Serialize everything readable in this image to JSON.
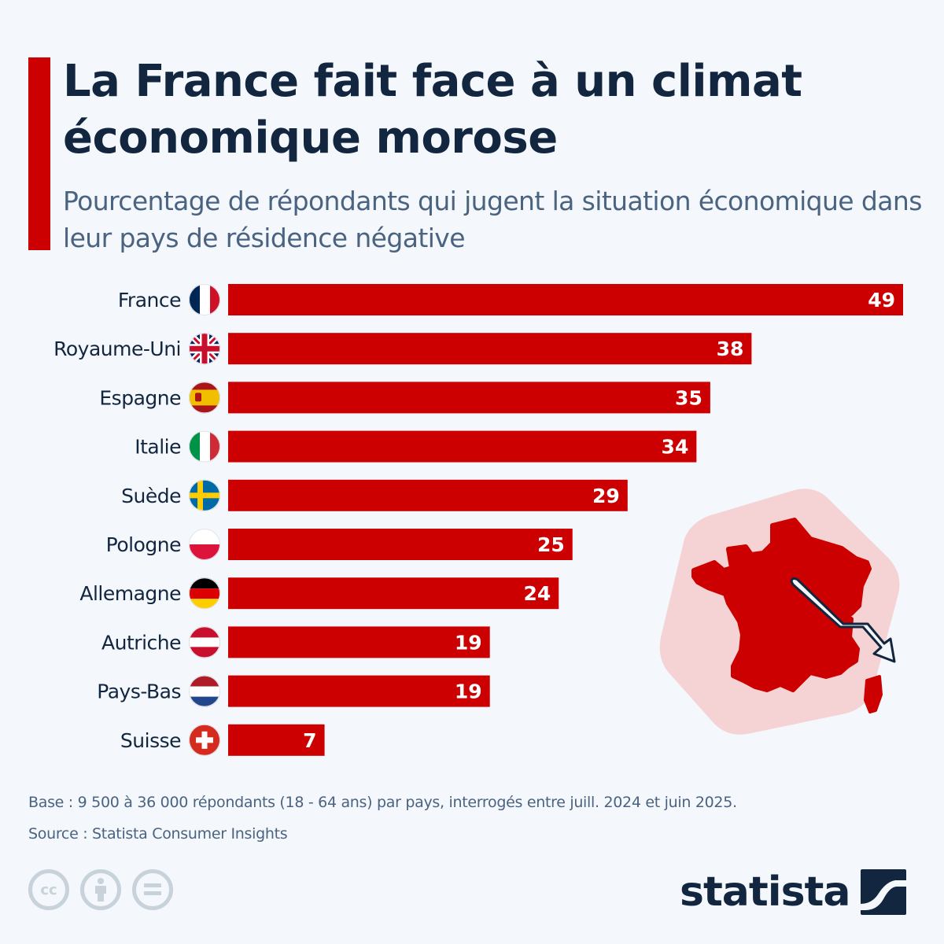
{
  "header": {
    "title": "La France fait face à un climat économique morose",
    "subtitle": "Pourcentage de répondants qui jugent la situation économique dans leur pays de résidence négative"
  },
  "colors": {
    "accent": "#cc0000",
    "title": "#12263f",
    "subtitle": "#4a6381",
    "background": "#f4f7fb",
    "map_bg": "#f5d3d5"
  },
  "chart_data": {
    "type": "bar",
    "orientation": "horizontal",
    "title": "La France fait face à un climat économique morose",
    "subtitle": "Pourcentage de répondants qui jugent la situation économique dans leur pays de résidence négative",
    "xlabel": "",
    "ylabel": "",
    "xlim": [
      0,
      49
    ],
    "grid": false,
    "unit": "%",
    "categories": [
      "France",
      "Royaume-Uni",
      "Espagne",
      "Italie",
      "Suède",
      "Pologne",
      "Allemagne",
      "Autriche",
      "Pays-Bas",
      "Suisse"
    ],
    "flags": [
      "flag-france-icon",
      "flag-uk-icon",
      "flag-spain-icon",
      "flag-italy-icon",
      "flag-sweden-icon",
      "flag-poland-icon",
      "flag-germany-icon",
      "flag-austria-icon",
      "flag-netherlands-icon",
      "flag-switzerland-icon"
    ],
    "values": [
      49,
      38,
      35,
      34,
      29,
      25,
      24,
      19,
      19,
      7
    ],
    "bar_color": "#cc0000"
  },
  "footer": {
    "base_note": "Base : 9 500 à 36 000 répondants (18 - 64 ans) par pays, interrogés entre juill. 2024 et juin 2025.",
    "source": "Source : Statista Consumer Insights",
    "license_icons": [
      "cc-icon",
      "attribution-icon",
      "no-derivatives-icon"
    ],
    "cc_text": "cc",
    "logo_text": "statista"
  }
}
